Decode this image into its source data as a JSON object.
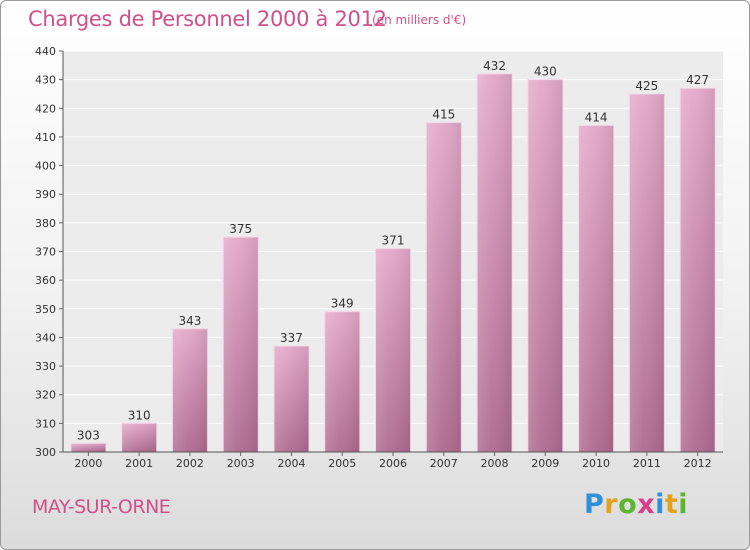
{
  "title": "Charges de Personnel 2000 à 2012",
  "subtitle": "(en milliers d'€)",
  "town": "MAY-SUR-ORNE",
  "logo": {
    "p": "P",
    "r": "r",
    "o": "o",
    "x": "x",
    "i1": "i",
    "t": "t",
    "i2": "i"
  },
  "colors": {
    "accent": "#d0508a",
    "bar_top": "#e3a6c8",
    "bar_bottom": "#b06890"
  },
  "chart_data": {
    "type": "bar",
    "title": "Charges de Personnel 2000 à 2012",
    "subtitle": "(en milliers d'€)",
    "categories": [
      "2000",
      "2001",
      "2002",
      "2003",
      "2004",
      "2005",
      "2006",
      "2007",
      "2008",
      "2009",
      "2010",
      "2011",
      "2012"
    ],
    "values": [
      303,
      310,
      343,
      375,
      337,
      349,
      371,
      415,
      432,
      430,
      414,
      425,
      427
    ],
    "ylim": [
      300,
      440
    ],
    "yticks": [
      300,
      310,
      320,
      330,
      340,
      350,
      360,
      370,
      380,
      390,
      400,
      410,
      420,
      430,
      440
    ],
    "grid": true,
    "legend": "none"
  }
}
